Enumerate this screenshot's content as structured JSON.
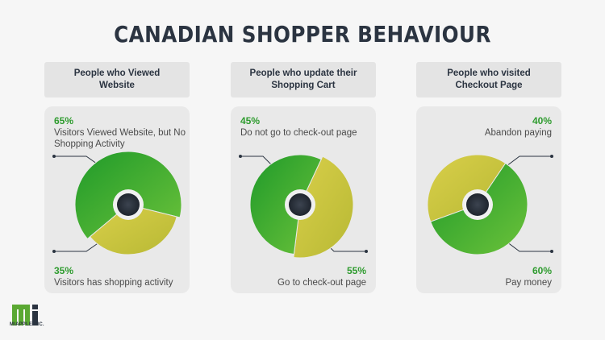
{
  "title": "CANADIAN SHOPPER BEHAVIOUR",
  "brand": {
    "name": "MIAPPLE INC.",
    "color": "#5aa832"
  },
  "colors": {
    "green": "#3fae2a",
    "yellow": "#c9c23a",
    "accent_text": "#2e9b2e"
  },
  "chart_data": [
    {
      "type": "pie",
      "title": "People who Viewed Website",
      "categories": [
        "Visitors Viewed Website, but No Shopping Activity",
        "Visitors has shopping activity"
      ],
      "values": [
        65,
        35
      ],
      "labels": [
        "65%",
        "35%"
      ]
    },
    {
      "type": "pie",
      "title": "People who update their Shopping Cart",
      "categories": [
        "Do not go to check-out page",
        "Go to check-out page"
      ],
      "values": [
        45,
        55
      ],
      "labels": [
        "45%",
        "55%"
      ]
    },
    {
      "type": "pie",
      "title": "People who visited Checkout Page",
      "categories": [
        "Abandon paying",
        "Pay money"
      ],
      "values": [
        40,
        60
      ],
      "labels": [
        "40%",
        "60%"
      ]
    }
  ]
}
